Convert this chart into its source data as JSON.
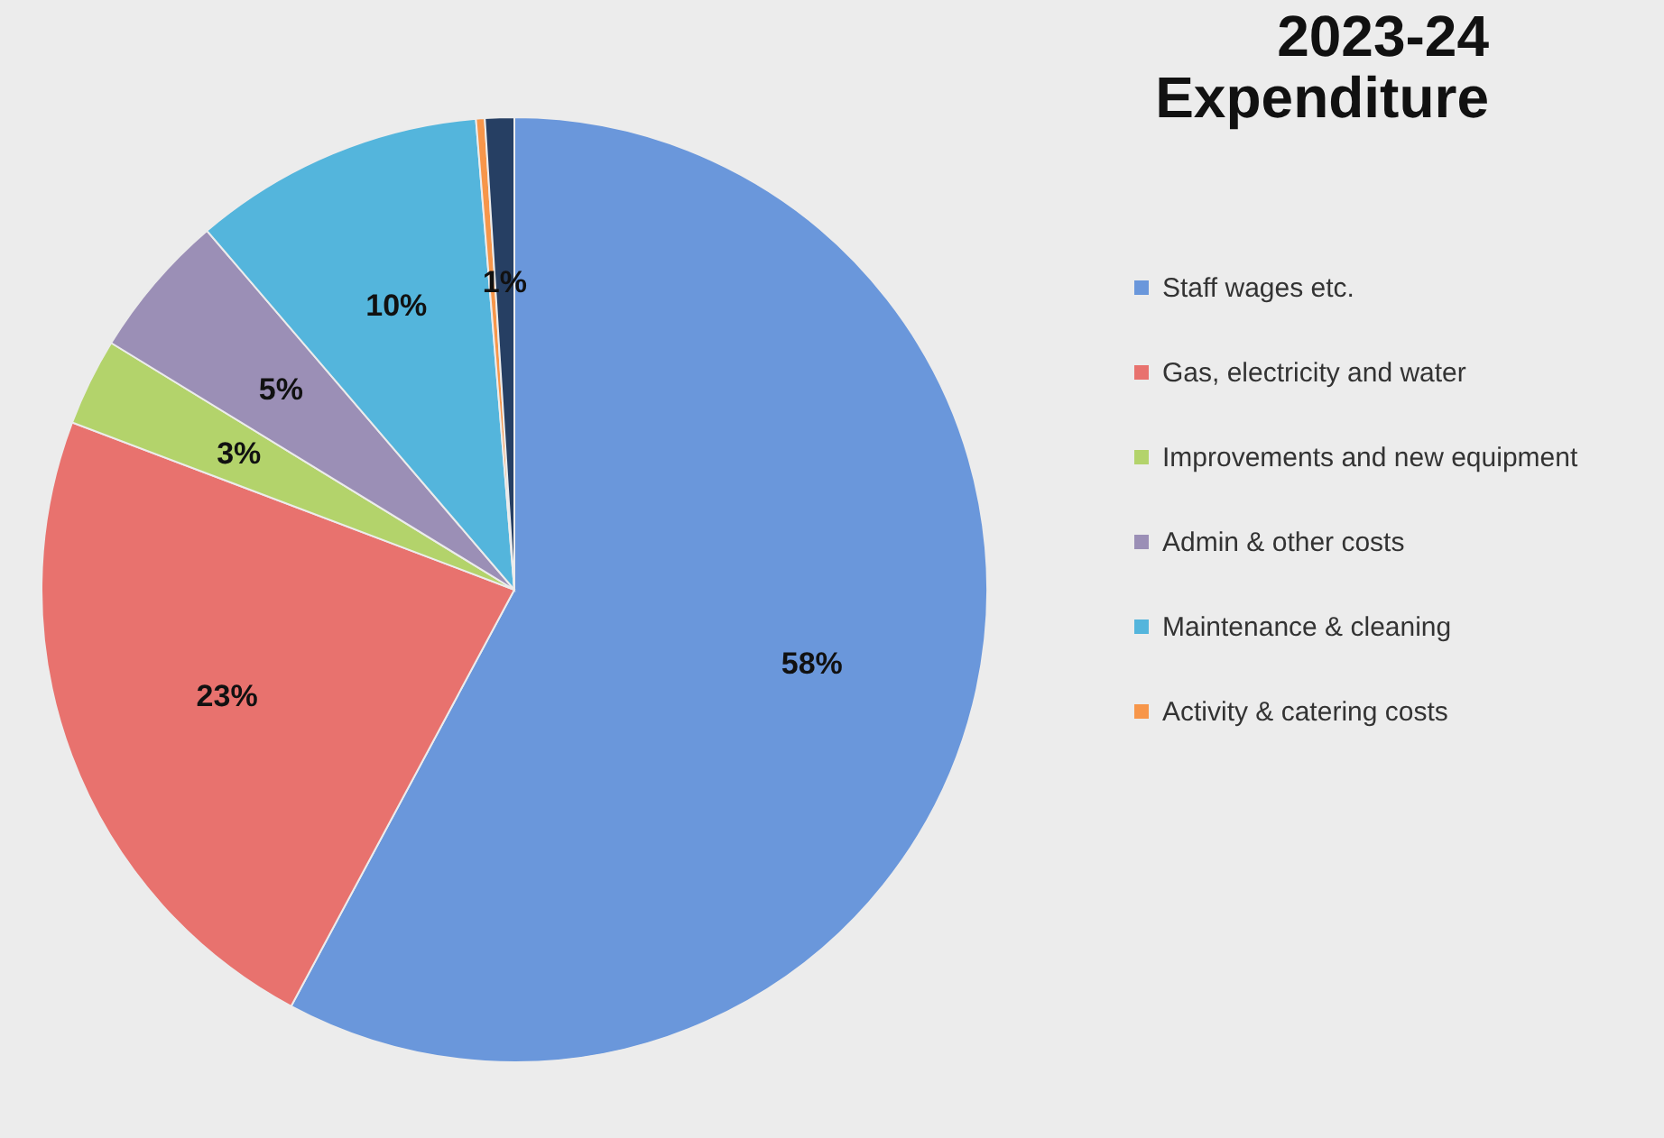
{
  "chart_data": {
    "type": "pie",
    "title": "2023-24 Expenditure",
    "categories": [
      "Staff wages etc.",
      "Gas, electricity and water",
      "Improvements and new equipment",
      "Admin & other costs",
      "Maintenance & cleaning",
      "Activity & catering costs",
      null
    ],
    "values": [
      58,
      23,
      3,
      5,
      10,
      0.3,
      1
    ],
    "value_labels": [
      "58%",
      "23%",
      "3%",
      "5%",
      "10%",
      null,
      "1%"
    ],
    "colors": [
      "#6a97db",
      "#e8726e",
      "#b3d36b",
      "#9b8fb6",
      "#54b5dc",
      "#f7964a",
      "#263f63"
    ],
    "legend": "right"
  }
}
